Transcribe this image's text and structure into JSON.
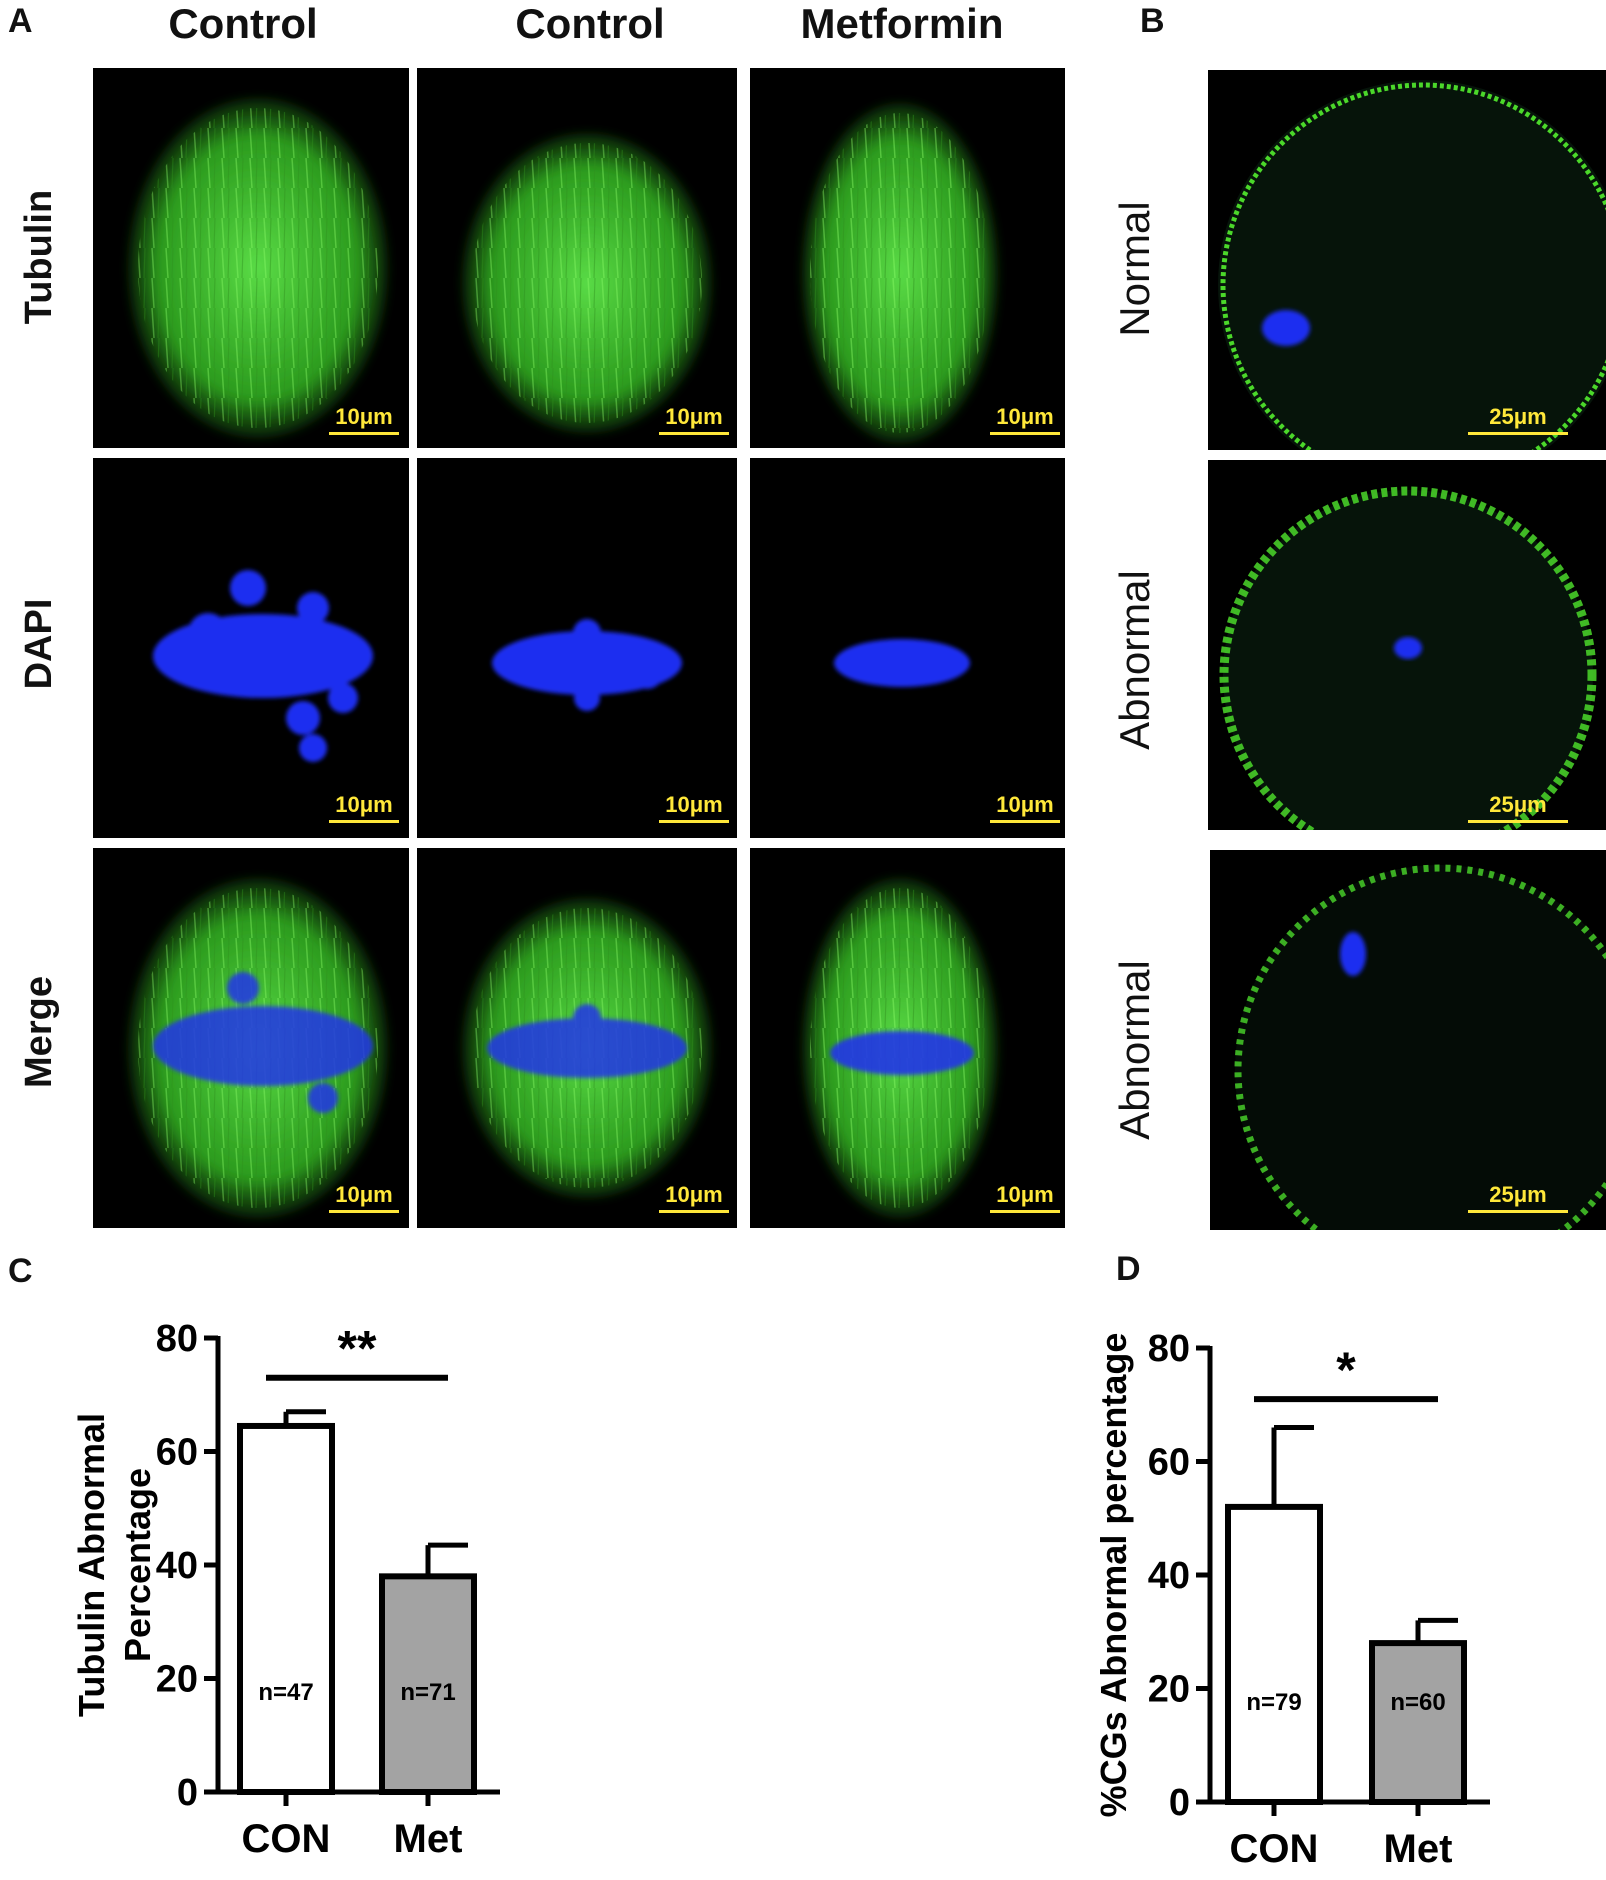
{
  "panels": {
    "a": "A",
    "b": "B",
    "c": "C",
    "d": "D"
  },
  "columns": [
    "Control",
    "Control",
    "Metformin"
  ],
  "rows_a": [
    "Tubulin",
    "DAPI",
    "Merge"
  ],
  "rows_b": [
    "Normal",
    "Abnormal",
    "Abnormal"
  ],
  "scalebar_a": "10μm",
  "scalebar_b": "25μm",
  "colors": {
    "tubulin": "#4bd82a",
    "dapi": "#1f2df0",
    "scale": "#ffe83a",
    "met_bar": "#a3a3a3"
  },
  "chart_data": [
    {
      "type": "bar",
      "panel": "C",
      "categories": [
        "CON",
        "Met"
      ],
      "values": [
        64.5,
        38
      ],
      "errors": [
        2.5,
        5.5
      ],
      "bar_labels": [
        "n=47",
        "n=71"
      ],
      "fills": [
        "#ffffff",
        "#a3a3a3"
      ],
      "ylabel": "Tubulin Abnormal Percentage",
      "ylabel_lines": [
        "Tubulin Abnormal",
        "Percentage"
      ],
      "ylim": [
        0,
        80
      ],
      "yticks": [
        0,
        20,
        40,
        60,
        80
      ],
      "significance": "**"
    },
    {
      "type": "bar",
      "panel": "D",
      "categories": [
        "CON",
        "Met"
      ],
      "values": [
        52,
        28
      ],
      "errors": [
        14,
        4
      ],
      "bar_labels": [
        "n=79",
        "n=60"
      ],
      "fills": [
        "#ffffff",
        "#a3a3a3"
      ],
      "ylabel": "%CGs Abnormal percentage",
      "ylabel_lines": [
        "%CGs Abnormal percentage"
      ],
      "ylim": [
        0,
        80
      ],
      "yticks": [
        0,
        20,
        40,
        60,
        80
      ],
      "significance": "*"
    }
  ]
}
